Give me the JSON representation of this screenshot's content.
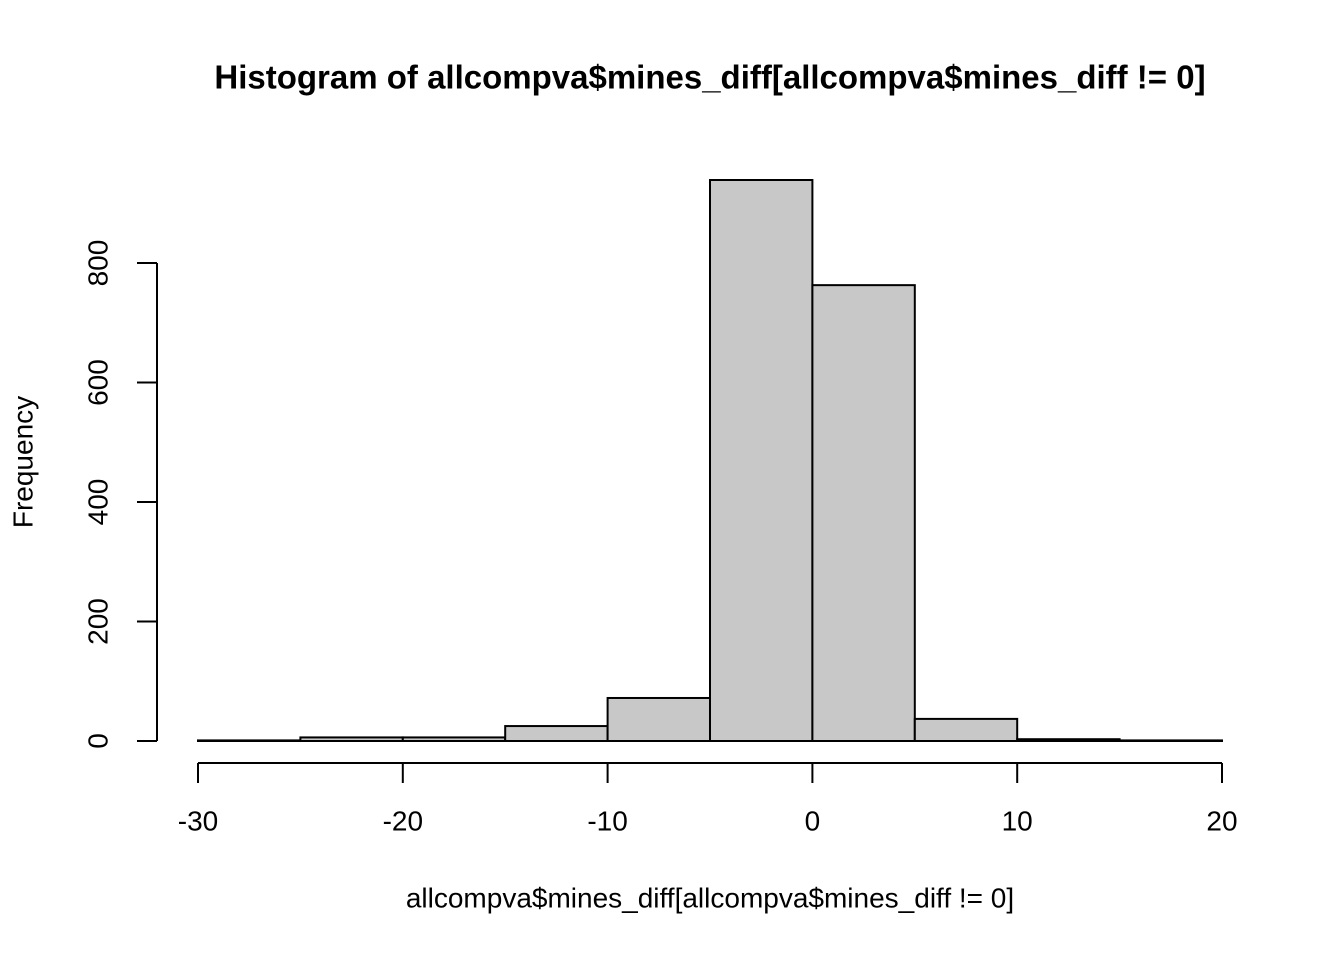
{
  "chart_data": {
    "type": "histogram",
    "title": "Histogram of allcompva$mines_diff[allcompva$mines_diff != 0]",
    "x_label": "allcompva$mines_diff[allcompva$mines_diff != 0]",
    "y_label": "Frequency",
    "bins": [
      -30,
      -25,
      -20,
      -15,
      -10,
      -5,
      0,
      5,
      10,
      15,
      20
    ],
    "values": [
      1,
      6,
      6,
      25,
      72,
      939,
      763,
      37,
      3,
      1
    ],
    "color": "#c8c8c8",
    "xlim": [
      -30,
      20
    ],
    "xticks": [
      -30,
      -20,
      -10,
      0,
      10,
      20
    ],
    "ylim": [
      0,
      939
    ],
    "yticks": [
      0,
      200,
      400,
      600,
      800
    ]
  }
}
